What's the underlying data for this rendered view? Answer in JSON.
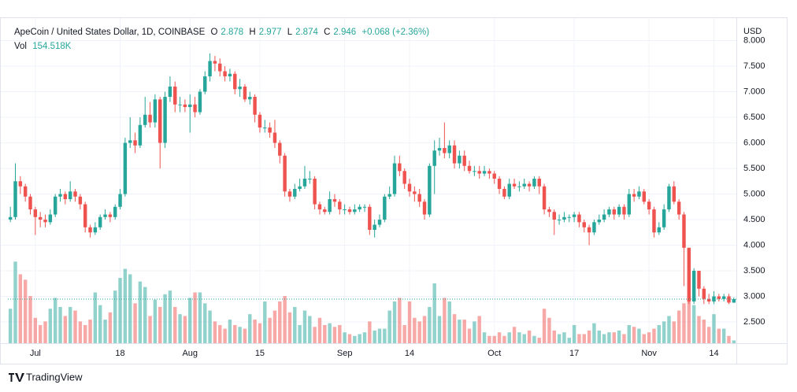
{
  "chart_data": {
    "type": "candlestick",
    "title": "ApeCoin / United States Dollar, 1D, COINBASE",
    "ohlc_labels": [
      "O",
      "H",
      "L",
      "C"
    ],
    "change_label": "+0.068 (+2.36%)",
    "volume_title": "Vol",
    "volume_label": "154.518K",
    "currency": "USD",
    "brand": "TradingView",
    "up_color": "#26a69a",
    "down_color": "#ef5350",
    "grid": true,
    "categories": [
      null,
      null,
      null,
      null,
      null,
      "Jul",
      null,
      null,
      null,
      null,
      null,
      null,
      null,
      null,
      null,
      null,
      null,
      null,
      null,
      null,
      null,
      null,
      "18",
      null,
      null,
      null,
      null,
      null,
      null,
      null,
      null,
      null,
      null,
      null,
      null,
      null,
      "Aug",
      null,
      null,
      null,
      null,
      null,
      null,
      null,
      null,
      null,
      null,
      null,
      null,
      null,
      "15",
      null,
      null,
      null,
      null,
      null,
      null,
      null,
      null,
      null,
      null,
      null,
      null,
      null,
      null,
      null,
      null,
      "Sep",
      null,
      null,
      null,
      null,
      null,
      null,
      null,
      null,
      null,
      null,
      null,
      null,
      "14",
      null,
      null,
      null,
      null,
      null,
      null,
      null,
      null,
      null,
      null,
      null,
      null,
      null,
      null,
      null,
      null,
      "Oct",
      null,
      null,
      null,
      null,
      null,
      null,
      null,
      null,
      null,
      null,
      null,
      null,
      null,
      null,
      null,
      "17",
      null,
      null,
      null,
      null,
      null,
      null,
      null,
      null,
      null,
      null,
      null,
      null,
      null,
      null,
      "Nov",
      null,
      null,
      null,
      null,
      null,
      null,
      null,
      null,
      null,
      null,
      null,
      null,
      "14",
      null,
      null,
      null,
      null
    ],
    "open": [
      4.5,
      4.55,
      5.25,
      5.15,
      4.95,
      4.7,
      4.55,
      4.5,
      4.45,
      4.6,
      4.95,
      5.0,
      4.9,
      5.05,
      4.95,
      4.8,
      4.35,
      4.25,
      4.35,
      4.55,
      4.6,
      4.55,
      4.75,
      5.0,
      6.0,
      6.05,
      5.95,
      6.35,
      6.55,
      6.4,
      6.85,
      6.0,
      6.9,
      7.1,
      6.75,
      6.75,
      6.7,
      6.75,
      6.6,
      7.0,
      7.3,
      7.6,
      7.55,
      7.4,
      7.3,
      7.35,
      7.05,
      7.1,
      6.85,
      6.9,
      6.55,
      6.3,
      6.3,
      6.2,
      6.0,
      5.75,
      5.05,
      4.95,
      5.1,
      5.15,
      5.3,
      5.3,
      4.8,
      4.7,
      4.65,
      4.9,
      4.85,
      4.7,
      4.7,
      4.65,
      4.7,
      4.75,
      4.75,
      4.3,
      4.4,
      4.5,
      4.95,
      5.0,
      5.6,
      5.45,
      5.2,
      5.05,
      5.0,
      4.85,
      4.6,
      5.55,
      5.85,
      5.9,
      5.8,
      5.95,
      5.6,
      5.75,
      5.55,
      5.45,
      5.45,
      5.4,
      5.45,
      5.4,
      5.3,
      5.1,
      4.95,
      5.2,
      5.15,
      5.15,
      5.2,
      5.15,
      5.3,
      5.15,
      4.7,
      4.65,
      4.5,
      4.5,
      4.55,
      4.55,
      4.6,
      4.45,
      4.35,
      4.25,
      4.45,
      4.5,
      4.6,
      4.7,
      4.6,
      4.75,
      4.6,
      5.0,
      4.95,
      5.05,
      4.85,
      4.7,
      4.25,
      4.35,
      4.7,
      5.15,
      4.85,
      4.6,
      3.95,
      2.9,
      3.5,
      3.15,
      2.95,
      2.9,
      3.0,
      2.95,
      3.0,
      2.878
    ],
    "high": [
      4.75,
      5.6,
      5.35,
      5.2,
      5.0,
      4.75,
      4.65,
      4.6,
      4.7,
      5.0,
      5.1,
      5.05,
      5.25,
      5.1,
      5.0,
      4.85,
      4.4,
      4.45,
      4.6,
      4.7,
      4.65,
      4.8,
      5.1,
      6.1,
      6.5,
      6.2,
      6.5,
      6.9,
      6.8,
      6.95,
      6.9,
      7.0,
      7.3,
      7.2,
      6.9,
      6.85,
      6.95,
      6.9,
      7.05,
      7.4,
      7.75,
      7.7,
      7.65,
      7.5,
      7.45,
      7.4,
      7.25,
      7.15,
      7.0,
      6.95,
      6.6,
      6.45,
      6.4,
      6.45,
      6.05,
      5.8,
      5.1,
      5.2,
      5.3,
      5.55,
      5.45,
      5.35,
      4.85,
      4.75,
      5.05,
      5.0,
      4.9,
      4.8,
      4.75,
      4.8,
      4.8,
      4.8,
      4.8,
      4.5,
      4.6,
      5.0,
      5.15,
      5.75,
      5.75,
      5.5,
      5.3,
      5.15,
      5.1,
      4.9,
      5.6,
      6.05,
      6.1,
      6.4,
      6.05,
      6.05,
      5.85,
      5.85,
      5.65,
      5.55,
      5.55,
      5.55,
      5.5,
      5.45,
      5.35,
      5.15,
      5.3,
      5.3,
      5.25,
      5.3,
      5.25,
      5.35,
      5.35,
      5.2,
      4.75,
      4.7,
      4.6,
      4.65,
      4.6,
      4.65,
      4.65,
      4.5,
      4.4,
      4.5,
      4.6,
      4.7,
      4.75,
      4.75,
      4.8,
      4.8,
      5.1,
      5.1,
      5.15,
      5.1,
      4.9,
      4.75,
      4.45,
      4.8,
      5.2,
      5.25,
      4.9,
      4.65,
      3.95,
      3.55,
      3.5,
      3.2,
      3.05,
      3.1,
      3.05,
      3.05,
      3.05,
      2.977
    ],
    "low": [
      4.45,
      4.5,
      5.0,
      4.85,
      4.6,
      4.2,
      4.35,
      4.35,
      4.4,
      4.55,
      4.85,
      4.8,
      4.85,
      4.85,
      4.7,
      4.25,
      4.15,
      4.2,
      4.3,
      4.5,
      4.45,
      4.5,
      4.7,
      4.95,
      5.9,
      5.8,
      5.9,
      6.3,
      6.3,
      6.3,
      5.5,
      5.9,
      6.8,
      6.6,
      6.6,
      6.6,
      6.2,
      6.5,
      6.55,
      6.95,
      7.2,
      7.4,
      7.3,
      7.2,
      7.2,
      6.95,
      6.9,
      6.8,
      6.75,
      6.4,
      6.2,
      6.2,
      6.1,
      5.9,
      5.6,
      4.95,
      4.85,
      4.9,
      5.05,
      5.1,
      5.2,
      4.7,
      4.6,
      4.6,
      4.6,
      4.75,
      4.6,
      4.6,
      4.6,
      4.6,
      4.65,
      4.65,
      4.2,
      4.15,
      4.35,
      4.45,
      4.9,
      4.95,
      5.35,
      5.1,
      4.95,
      4.85,
      4.75,
      4.5,
      4.55,
      5.0,
      5.75,
      5.7,
      5.7,
      5.5,
      5.5,
      5.45,
      5.4,
      5.35,
      5.3,
      5.35,
      5.3,
      5.2,
      5.0,
      4.9,
      4.9,
      5.1,
      5.05,
      5.1,
      5.05,
      5.1,
      5.0,
      4.6,
      4.55,
      4.2,
      4.4,
      4.45,
      4.45,
      4.45,
      4.35,
      4.25,
      4.0,
      4.2,
      4.4,
      4.45,
      4.55,
      4.5,
      4.55,
      4.5,
      4.55,
      4.85,
      4.9,
      4.8,
      4.6,
      4.15,
      4.2,
      4.3,
      4.65,
      4.8,
      4.5,
      3.2,
      2.85,
      2.85,
      3.0,
      2.85,
      2.85,
      2.85,
      2.9,
      2.9,
      2.85,
      2.874
    ],
    "close": [
      4.55,
      5.25,
      5.15,
      4.95,
      4.7,
      4.55,
      4.5,
      4.45,
      4.6,
      4.95,
      5.0,
      4.9,
      5.05,
      4.95,
      4.8,
      4.35,
      4.25,
      4.35,
      4.55,
      4.6,
      4.55,
      4.75,
      5.0,
      6.0,
      6.05,
      5.95,
      6.35,
      6.55,
      6.4,
      6.85,
      6.0,
      6.9,
      7.1,
      6.75,
      6.75,
      6.7,
      6.75,
      6.6,
      7.0,
      7.3,
      7.6,
      7.55,
      7.4,
      7.3,
      7.35,
      7.05,
      7.1,
      6.85,
      6.9,
      6.55,
      6.3,
      6.3,
      6.2,
      6.0,
      5.75,
      5.05,
      4.95,
      5.1,
      5.15,
      5.3,
      5.3,
      4.8,
      4.7,
      4.65,
      4.9,
      4.85,
      4.7,
      4.7,
      4.65,
      4.7,
      4.75,
      4.75,
      4.3,
      4.4,
      4.5,
      4.95,
      5.0,
      5.6,
      5.45,
      5.2,
      5.05,
      5.0,
      4.85,
      4.6,
      5.55,
      5.85,
      5.9,
      5.8,
      5.95,
      5.6,
      5.75,
      5.55,
      5.45,
      5.45,
      5.4,
      5.45,
      5.4,
      5.3,
      5.1,
      4.95,
      5.2,
      5.15,
      5.15,
      5.2,
      5.15,
      5.3,
      5.15,
      4.7,
      4.65,
      4.5,
      4.5,
      4.55,
      4.55,
      4.6,
      4.45,
      4.35,
      4.25,
      4.45,
      4.5,
      4.6,
      4.7,
      4.6,
      4.75,
      4.6,
      5.0,
      4.95,
      5.05,
      4.85,
      4.7,
      4.25,
      4.35,
      4.7,
      5.15,
      4.85,
      4.6,
      3.95,
      2.9,
      3.5,
      3.15,
      2.95,
      2.9,
      3.0,
      2.95,
      3.0,
      2.878,
      2.946
    ],
    "volume": [
      1.9,
      4.5,
      3.8,
      3.5,
      2.6,
      1.4,
      1.0,
      1.2,
      1.9,
      2.5,
      2.0,
      1.5,
      2.0,
      1.8,
      1.2,
      1.0,
      1.3,
      2.8,
      2.1,
      1.3,
      1.7,
      2.9,
      3.6,
      4.1,
      3.8,
      2.2,
      3.4,
      3.1,
      1.5,
      2.4,
      2.0,
      2.7,
      2.9,
      2.0,
      1.6,
      1.5,
      2.5,
      2.8,
      2.8,
      2.2,
      1.8,
      1.2,
      1.0,
      0.8,
      1.3,
      1.0,
      0.9,
      0.8,
      1.6,
      1.3,
      1.1,
      2.3,
      1.4,
      1.8,
      2.3,
      2.6,
      1.7,
      2.0,
      1.0,
      1.8,
      1.5,
      0.9,
      1.4,
      1.0,
      1.1,
      0.9,
      1.0,
      0.6,
      0.5,
      0.4,
      0.5,
      0.6,
      1.2,
      0.7,
      0.8,
      0.8,
      1.8,
      2.3,
      2.5,
      1.0,
      2.3,
      1.4,
      1.2,
      1.5,
      2.0,
      3.3,
      1.5,
      2.5,
      2.3,
      1.6,
      1.3,
      1.3,
      0.8,
      1.2,
      1.5,
      0.6,
      0.4,
      0.4,
      0.6,
      0.4,
      0.6,
      0.9,
      0.6,
      0.5,
      0.7,
      0.4,
      0.3,
      1.9,
      1.4,
      0.7,
      0.5,
      0.6,
      0.3,
      1.0,
      0.5,
      0.5,
      0.7,
      1.1,
      0.7,
      0.5,
      0.6,
      0.6,
      0.7,
      0.5,
      1.0,
      0.9,
      0.8,
      0.5,
      0.6,
      0.8,
      1.0,
      1.2,
      1.5,
      1.2,
      1.8,
      2.2,
      2.5,
      2.1,
      1.5,
      1.3,
      0.9,
      1.6,
      0.8,
      0.8,
      0.4,
      0.154518
    ],
    "ylim": [
      2.085,
      8.331
    ],
    "yticks": [
      {
        "value": 2.5,
        "label": "2.500"
      },
      {
        "value": 3,
        "label": "3.000"
      },
      {
        "value": 3.5,
        "label": "3.500"
      },
      {
        "value": 4,
        "label": "4.000"
      },
      {
        "value": 4.5,
        "label": "4.500"
      },
      {
        "value": 5,
        "label": "5.000"
      },
      {
        "value": 5.5,
        "label": "5.500"
      },
      {
        "value": 6,
        "label": "6.000"
      },
      {
        "value": 6.5,
        "label": "6.500"
      },
      {
        "value": 7,
        "label": "7.000"
      },
      {
        "value": 7.5,
        "label": "7.500"
      },
      {
        "value": 8,
        "label": "8.000"
      }
    ],
    "volume_lim": [
      0,
      4.6
    ]
  }
}
